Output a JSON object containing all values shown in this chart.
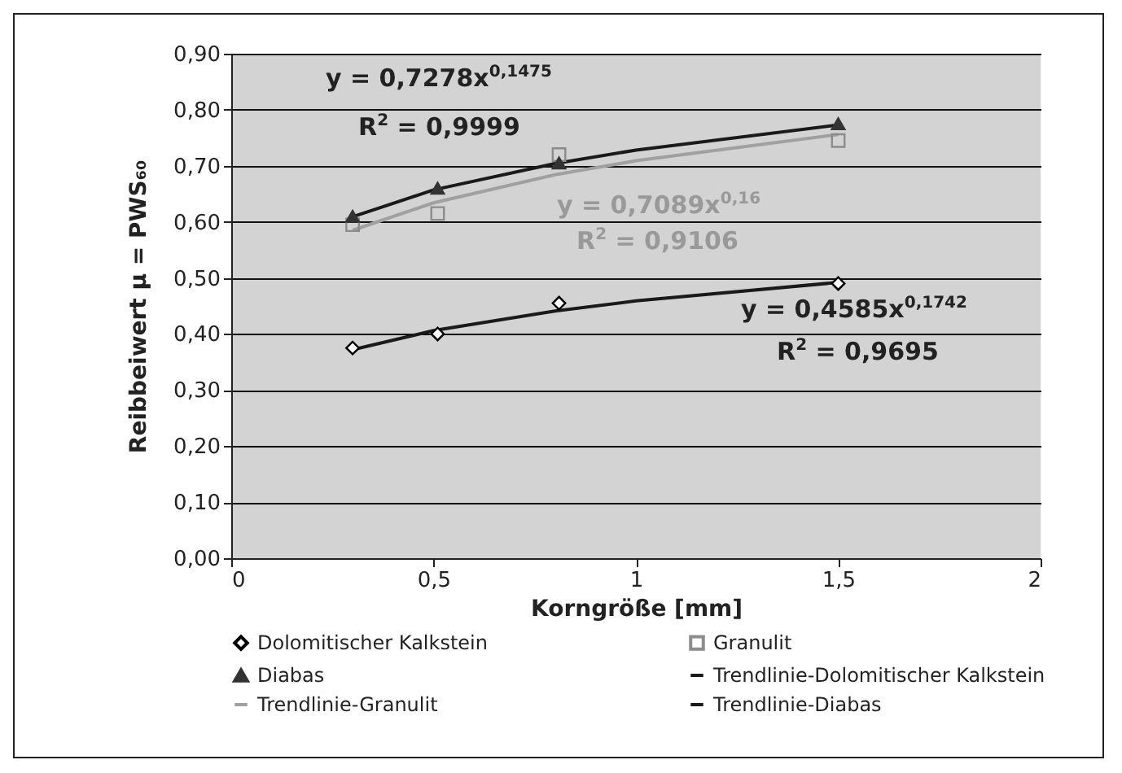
{
  "chart_data": {
    "type": "scatter",
    "xlabel": "Korngröße [mm]",
    "ylabel": "Reibbeiwert  μ = PWS₆₀",
    "xlim": [
      0,
      2
    ],
    "xticks": [
      {
        "value": 0,
        "label": "0"
      },
      {
        "value": 0.5,
        "label": "0,5"
      },
      {
        "value": 1,
        "label": "1"
      },
      {
        "value": 1.5,
        "label": "1,5"
      },
      {
        "value": 2,
        "label": "2"
      }
    ],
    "ylim": [
      0,
      0.9
    ],
    "yticks": [
      {
        "value": 0,
        "label": "0,00"
      },
      {
        "value": 0.1,
        "label": "0,10"
      },
      {
        "value": 0.2,
        "label": "0,20"
      },
      {
        "value": 0.3,
        "label": "0,30"
      },
      {
        "value": 0.4,
        "label": "0,40"
      },
      {
        "value": 0.5,
        "label": "0,50"
      },
      {
        "value": 0.6,
        "label": "0,60"
      },
      {
        "value": 0.7,
        "label": "0,70"
      },
      {
        "value": 0.8,
        "label": "0,80"
      },
      {
        "value": 0.9,
        "label": "0,90"
      }
    ],
    "grid": "y",
    "legend": "bottom",
    "series": [
      {
        "name": "Dolomitischer Kalkstein",
        "type": "scatter",
        "marker": "diamond",
        "color": "#000000",
        "x": [
          0.3,
          0.51,
          0.81,
          1.5
        ],
        "values": [
          0.375,
          0.4,
          0.455,
          0.49
        ]
      },
      {
        "name": "Granulit",
        "type": "scatter",
        "marker": "square",
        "color": "#8c8c8c",
        "x": [
          0.3,
          0.51,
          0.81,
          1.5
        ],
        "values": [
          0.595,
          0.615,
          0.72,
          0.745
        ]
      },
      {
        "name": "Diabas",
        "type": "scatter",
        "marker": "triangle",
        "color": "#333333",
        "x": [
          0.3,
          0.51,
          0.81,
          1.5
        ],
        "values": [
          0.61,
          0.66,
          0.705,
          0.775
        ]
      },
      {
        "name": "Trendlinie-Dolomitischer Kalkstein",
        "type": "line",
        "marker": "none",
        "color": "#1a1a1a",
        "x": [
          0.3,
          0.5,
          0.8,
          1,
          1.5
        ],
        "values": [
          0.372,
          0.406,
          0.441,
          0.459,
          0.492
        ]
      },
      {
        "name": "Trendlinie-Granulit",
        "type": "line",
        "marker": "none",
        "color": "#a0a0a0",
        "x": [
          0.3,
          0.5,
          0.8,
          1,
          1.5
        ],
        "values": [
          0.585,
          0.634,
          0.684,
          0.709,
          0.756
        ]
      },
      {
        "name": "Trendlinie-Diabas",
        "type": "line",
        "marker": "none",
        "color": "#1a1a1a",
        "x": [
          0.3,
          0.5,
          0.8,
          1,
          1.5
        ],
        "values": [
          0.609,
          0.657,
          0.704,
          0.728,
          0.773
        ]
      }
    ],
    "annotations": [
      "y = 0,7278x$^{0,1475}$",
      "R$^{2}$ = 0,9999",
      "y = 0,7089x$^{0,16}$",
      "R$^{2}$ = 0,9106",
      "y = 0,4585x$^{0,1742}$",
      "R$^{2}$ = 0,9695"
    ]
  }
}
